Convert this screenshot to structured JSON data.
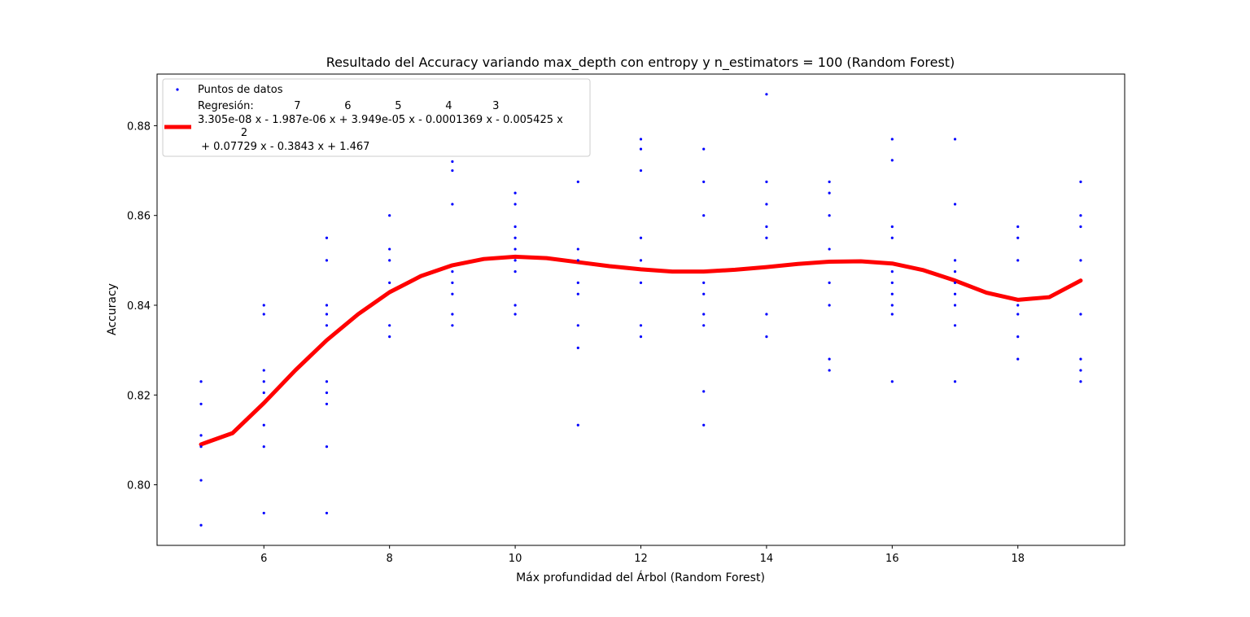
{
  "chart_data": {
    "type": "scatter",
    "title": "Resultado del Accuracy variando max_depth con entropy y n_estimators = 100 (Random Forest)",
    "xlabel": "Máx profundidad del Árbol (Random Forest)",
    "ylabel": "Accuracy",
    "xlim": [
      4.3,
      19.7
    ],
    "ylim": [
      0.7865,
      0.8915
    ],
    "x_ticks": [
      6,
      8,
      10,
      12,
      14,
      16,
      18
    ],
    "y_ticks": [
      0.8,
      0.82,
      0.84,
      0.86,
      0.88
    ],
    "x_tick_labels": [
      "6",
      "8",
      "10",
      "12",
      "14",
      "16",
      "18"
    ],
    "y_tick_labels": [
      "0.80",
      "0.82",
      "0.84",
      "0.86",
      "0.88"
    ],
    "grid": false,
    "legend_position": "top-left",
    "colors": {
      "points": "#0000ff",
      "regression": "#ff0000"
    },
    "series": [
      {
        "name": "Puntos de datos",
        "kind": "scatter",
        "points": [
          [
            5,
            0.823
          ],
          [
            5,
            0.818
          ],
          [
            5,
            0.811
          ],
          [
            5,
            0.8085
          ],
          [
            5,
            0.801
          ],
          [
            5,
            0.791
          ],
          [
            6,
            0.84
          ],
          [
            6,
            0.838
          ],
          [
            6,
            0.8255
          ],
          [
            6,
            0.823
          ],
          [
            6,
            0.8205
          ],
          [
            6,
            0.8133
          ],
          [
            6,
            0.8085
          ],
          [
            6,
            0.7937
          ],
          [
            7,
            0.855
          ],
          [
            7,
            0.85
          ],
          [
            7,
            0.84
          ],
          [
            7,
            0.838
          ],
          [
            7,
            0.8355
          ],
          [
            7,
            0.823
          ],
          [
            7,
            0.8205
          ],
          [
            7,
            0.818
          ],
          [
            7,
            0.8085
          ],
          [
            7,
            0.7937
          ],
          [
            8,
            0.86
          ],
          [
            8,
            0.8525
          ],
          [
            8,
            0.85
          ],
          [
            8,
            0.845
          ],
          [
            8,
            0.8355
          ],
          [
            8,
            0.833
          ],
          [
            9,
            0.872
          ],
          [
            9,
            0.87
          ],
          [
            9,
            0.8625
          ],
          [
            9,
            0.8475
          ],
          [
            9,
            0.845
          ],
          [
            9,
            0.8425
          ],
          [
            9,
            0.838
          ],
          [
            9,
            0.8355
          ],
          [
            10,
            0.865
          ],
          [
            10,
            0.8625
          ],
          [
            10,
            0.8575
          ],
          [
            10,
            0.855
          ],
          [
            10,
            0.8525
          ],
          [
            10,
            0.85
          ],
          [
            10,
            0.8475
          ],
          [
            10,
            0.84
          ],
          [
            10,
            0.838
          ],
          [
            11,
            0.8675
          ],
          [
            11,
            0.8525
          ],
          [
            11,
            0.85
          ],
          [
            11,
            0.845
          ],
          [
            11,
            0.8425
          ],
          [
            11,
            0.8355
          ],
          [
            11,
            0.8305
          ],
          [
            11,
            0.8133
          ],
          [
            12,
            0.877
          ],
          [
            12,
            0.8748
          ],
          [
            12,
            0.87
          ],
          [
            12,
            0.855
          ],
          [
            12,
            0.85
          ],
          [
            12,
            0.845
          ],
          [
            12,
            0.8355
          ],
          [
            12,
            0.833
          ],
          [
            13,
            0.8748
          ],
          [
            13,
            0.8675
          ],
          [
            13,
            0.86
          ],
          [
            13,
            0.845
          ],
          [
            13,
            0.8425
          ],
          [
            13,
            0.838
          ],
          [
            13,
            0.8355
          ],
          [
            13,
            0.8208
          ],
          [
            13,
            0.8133
          ],
          [
            14,
            0.887
          ],
          [
            14,
            0.8675
          ],
          [
            14,
            0.8625
          ],
          [
            14,
            0.8575
          ],
          [
            14,
            0.855
          ],
          [
            14,
            0.838
          ],
          [
            14,
            0.833
          ],
          [
            15,
            0.8675
          ],
          [
            15,
            0.865
          ],
          [
            15,
            0.86
          ],
          [
            15,
            0.8525
          ],
          [
            15,
            0.845
          ],
          [
            15,
            0.84
          ],
          [
            15,
            0.828
          ],
          [
            15,
            0.8255
          ],
          [
            16,
            0.877
          ],
          [
            16,
            0.8723
          ],
          [
            16,
            0.8575
          ],
          [
            16,
            0.855
          ],
          [
            16,
            0.8475
          ],
          [
            16,
            0.845
          ],
          [
            16,
            0.8425
          ],
          [
            16,
            0.84
          ],
          [
            16,
            0.838
          ],
          [
            16,
            0.823
          ],
          [
            17,
            0.877
          ],
          [
            17,
            0.8625
          ],
          [
            17,
            0.85
          ],
          [
            17,
            0.8475
          ],
          [
            17,
            0.845
          ],
          [
            17,
            0.8425
          ],
          [
            17,
            0.84
          ],
          [
            17,
            0.8355
          ],
          [
            17,
            0.823
          ],
          [
            18,
            0.8575
          ],
          [
            18,
            0.855
          ],
          [
            18,
            0.85
          ],
          [
            18,
            0.84
          ],
          [
            18,
            0.838
          ],
          [
            18,
            0.833
          ],
          [
            18,
            0.828
          ],
          [
            19,
            0.8675
          ],
          [
            19,
            0.86
          ],
          [
            19,
            0.8575
          ],
          [
            19,
            0.85
          ],
          [
            19,
            0.838
          ],
          [
            19,
            0.828
          ],
          [
            19,
            0.8255
          ],
          [
            19,
            0.823
          ]
        ]
      },
      {
        "name": "Regresión",
        "kind": "line",
        "points": [
          [
            5,
            0.809
          ],
          [
            5.5,
            0.8115
          ],
          [
            6,
            0.8182
          ],
          [
            6.5,
            0.8255
          ],
          [
            7,
            0.8322
          ],
          [
            7.5,
            0.838
          ],
          [
            8,
            0.8429
          ],
          [
            8.5,
            0.8465
          ],
          [
            9,
            0.8489
          ],
          [
            9.5,
            0.8503
          ],
          [
            10,
            0.8508
          ],
          [
            10.5,
            0.8505
          ],
          [
            11,
            0.8496
          ],
          [
            11.5,
            0.8487
          ],
          [
            12,
            0.848
          ],
          [
            12.5,
            0.8475
          ],
          [
            13,
            0.8475
          ],
          [
            13.5,
            0.8479
          ],
          [
            14,
            0.8485
          ],
          [
            14.5,
            0.8492
          ],
          [
            15,
            0.8497
          ],
          [
            15.5,
            0.8498
          ],
          [
            16,
            0.8493
          ],
          [
            16.5,
            0.8478
          ],
          [
            17,
            0.8455
          ],
          [
            17.5,
            0.8428
          ],
          [
            18,
            0.8412
          ],
          [
            18.5,
            0.8418
          ],
          [
            19,
            0.8455
          ]
        ]
      }
    ],
    "legend": {
      "scatter_label": "Puntos de datos",
      "regression_lines": [
        "Regresión:            7             6             5             4            3",
        "3.305e-08 x - 1.987e-06 x + 3.949e-05 x - 0.0001369 x - 0.005425 x",
        "2",
        " + 0.07729 x - 0.3843 x + 1.467"
      ]
    }
  }
}
